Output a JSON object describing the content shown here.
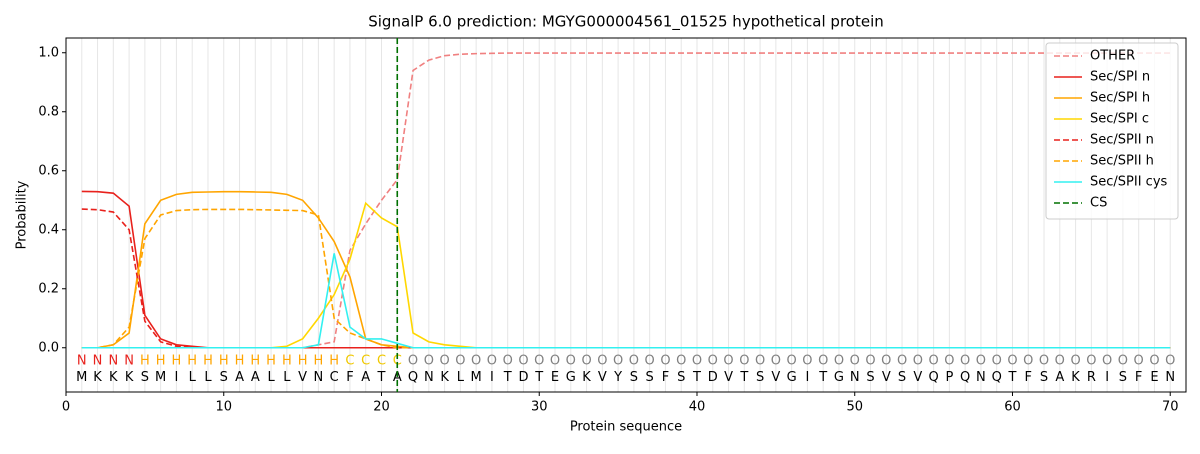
{
  "chart_data": {
    "type": "line",
    "title": "SignalP 6.0 prediction: MGYG000004561_01525 hypothetical protein",
    "x_label": "Protein sequence",
    "y_label": "Probability",
    "x": [
      1,
      2,
      3,
      4,
      5,
      6,
      7,
      8,
      9,
      10,
      11,
      12,
      13,
      14,
      15,
      16,
      17,
      18,
      19,
      20,
      21,
      22,
      23,
      24,
      25,
      26,
      27,
      28,
      29,
      30,
      31,
      32,
      33,
      34,
      35,
      36,
      37,
      38,
      39,
      40,
      41,
      42,
      43,
      44,
      45,
      46,
      47,
      48,
      49,
      50,
      51,
      52,
      53,
      54,
      55,
      56,
      57,
      58,
      59,
      60,
      61,
      62,
      63,
      64,
      65,
      66,
      67,
      68,
      69,
      70
    ],
    "sequence": [
      "M",
      "K",
      "K",
      "K",
      "S",
      "M",
      "I",
      "L",
      "L",
      "S",
      "A",
      "A",
      "L",
      "L",
      "V",
      "N",
      "C",
      "F",
      "A",
      "T",
      "A",
      "Q",
      "N",
      "K",
      "L",
      "M",
      "I",
      "T",
      "D",
      "T",
      "E",
      "G",
      "K",
      "V",
      "Y",
      "S",
      "S",
      "F",
      "S",
      "T",
      "D",
      "V",
      "T",
      "S",
      "V",
      "G",
      "I",
      "T",
      "G",
      "N",
      "S",
      "V",
      "S",
      "V",
      "Q",
      "P",
      "Q",
      "N",
      "Q",
      "T",
      "F",
      "S",
      "A",
      "K",
      "R",
      "I",
      "S",
      "F",
      "E",
      "N"
    ],
    "regions": [
      "N",
      "N",
      "N",
      "N",
      "H",
      "H",
      "H",
      "H",
      "H",
      "H",
      "H",
      "H",
      "H",
      "H",
      "H",
      "H",
      "H",
      "C",
      "C",
      "C",
      "C",
      "O",
      "O",
      "O",
      "O",
      "O",
      "O",
      "O",
      "O",
      "O",
      "O",
      "O",
      "O",
      "O",
      "O",
      "O",
      "O",
      "O",
      "O",
      "O",
      "O",
      "O",
      "O",
      "O",
      "O",
      "O",
      "O",
      "O",
      "O",
      "O",
      "O",
      "O",
      "O",
      "O",
      "O",
      "O",
      "O",
      "O",
      "O",
      "O",
      "O",
      "O",
      "O",
      "O",
      "O",
      "O",
      "O",
      "O",
      "O",
      "O"
    ],
    "region_colors": {
      "N": "#e8211c",
      "H": "#ffa500",
      "C": "#f0c800",
      "O": "#808080"
    },
    "series": [
      {
        "name": "OTHER",
        "color": "#f08080",
        "dash": true,
        "values": [
          0,
          0,
          0,
          0,
          0,
          0,
          0,
          0,
          0,
          0,
          0,
          0,
          0,
          0,
          0,
          0.01,
          0.02,
          0.33,
          0.42,
          0.5,
          0.57,
          0.94,
          0.975,
          0.99,
          0.995,
          0.997,
          0.998,
          0.999,
          0.999,
          0.999,
          0.999,
          0.999,
          0.999,
          0.999,
          0.999,
          0.999,
          0.999,
          0.999,
          0.999,
          0.999,
          0.999,
          0.999,
          0.999,
          0.999,
          0.999,
          0.999,
          0.999,
          0.999,
          0.999,
          0.999,
          0.999,
          0.999,
          0.999,
          0.999,
          0.999,
          0.999,
          0.999,
          0.999,
          0.999,
          0.999,
          0.999,
          0.999,
          0.999,
          0.999,
          0.999,
          0.999,
          0.999,
          0.999,
          0.999,
          0.999
        ]
      },
      {
        "name": "Sec/SPI n",
        "color": "#e8211c",
        "dash": false,
        "values": [
          0.53,
          0.529,
          0.524,
          0.48,
          0.11,
          0.03,
          0.01,
          0.005,
          0,
          0,
          0,
          0,
          0,
          0,
          0,
          0,
          0,
          0,
          0,
          0,
          0,
          0,
          0,
          0,
          0,
          0,
          0,
          0,
          0,
          0,
          0,
          0,
          0,
          0,
          0,
          0,
          0,
          0,
          0,
          0,
          0,
          0,
          0,
          0,
          0,
          0,
          0,
          0,
          0,
          0,
          0,
          0,
          0,
          0,
          0,
          0,
          0,
          0,
          0,
          0,
          0,
          0,
          0,
          0,
          0,
          0,
          0,
          0,
          0,
          0
        ]
      },
      {
        "name": "Sec/SPI h",
        "color": "#ffa500",
        "dash": false,
        "values": [
          0,
          0,
          0.01,
          0.05,
          0.42,
          0.5,
          0.52,
          0.527,
          0.528,
          0.529,
          0.529,
          0.528,
          0.527,
          0.52,
          0.5,
          0.44,
          0.36,
          0.24,
          0.03,
          0.01,
          0.005,
          0,
          0,
          0,
          0,
          0,
          0,
          0,
          0,
          0,
          0,
          0,
          0,
          0,
          0,
          0,
          0,
          0,
          0,
          0,
          0,
          0,
          0,
          0,
          0,
          0,
          0,
          0,
          0,
          0,
          0,
          0,
          0,
          0,
          0,
          0,
          0,
          0,
          0,
          0,
          0,
          0,
          0,
          0,
          0,
          0,
          0,
          0,
          0,
          0
        ]
      },
      {
        "name": "Sec/SPI c",
        "color": "#ffd700",
        "dash": false,
        "values": [
          0,
          0,
          0,
          0,
          0,
          0,
          0,
          0,
          0,
          0,
          0,
          0,
          0,
          0.005,
          0.03,
          0.1,
          0.18,
          0.3,
          0.49,
          0.44,
          0.41,
          0.05,
          0.02,
          0.01,
          0.005,
          0,
          0,
          0,
          0,
          0,
          0,
          0,
          0,
          0,
          0,
          0,
          0,
          0,
          0,
          0,
          0,
          0,
          0,
          0,
          0,
          0,
          0,
          0,
          0,
          0,
          0,
          0,
          0,
          0,
          0,
          0,
          0,
          0,
          0,
          0,
          0,
          0,
          0,
          0,
          0,
          0,
          0,
          0,
          0,
          0
        ]
      },
      {
        "name": "Sec/SPII n",
        "color": "#e8211c",
        "dash": true,
        "values": [
          0.47,
          0.468,
          0.46,
          0.4,
          0.09,
          0.02,
          0.005,
          0,
          0,
          0,
          0,
          0,
          0,
          0,
          0,
          0,
          0,
          0,
          0,
          0,
          0,
          0,
          0,
          0,
          0,
          0,
          0,
          0,
          0,
          0,
          0,
          0,
          0,
          0,
          0,
          0,
          0,
          0,
          0,
          0,
          0,
          0,
          0,
          0,
          0,
          0,
          0,
          0,
          0,
          0,
          0,
          0,
          0,
          0,
          0,
          0,
          0,
          0,
          0,
          0,
          0,
          0,
          0,
          0,
          0,
          0,
          0,
          0,
          0,
          0
        ]
      },
      {
        "name": "Sec/SPII h",
        "color": "#ffa500",
        "dash": true,
        "values": [
          0,
          0,
          0.01,
          0.07,
          0.37,
          0.45,
          0.465,
          0.468,
          0.469,
          0.469,
          0.469,
          0.468,
          0.467,
          0.466,
          0.465,
          0.45,
          0.1,
          0.05,
          0.03,
          0.01,
          0,
          0,
          0,
          0,
          0,
          0,
          0,
          0,
          0,
          0,
          0,
          0,
          0,
          0,
          0,
          0,
          0,
          0,
          0,
          0,
          0,
          0,
          0,
          0,
          0,
          0,
          0,
          0,
          0,
          0,
          0,
          0,
          0,
          0,
          0,
          0,
          0,
          0,
          0,
          0,
          0,
          0,
          0,
          0,
          0,
          0,
          0,
          0,
          0,
          0
        ]
      },
      {
        "name": "Sec/SPII cys",
        "color": "#33f0f0",
        "dash": false,
        "values": [
          0,
          0,
          0,
          0,
          0,
          0,
          0,
          0,
          0,
          0,
          0,
          0,
          0,
          0,
          0,
          0.01,
          0.32,
          0.07,
          0.03,
          0.03,
          0.015,
          0,
          0,
          0,
          0,
          0,
          0,
          0,
          0,
          0,
          0,
          0,
          0,
          0,
          0,
          0,
          0,
          0,
          0,
          0,
          0,
          0,
          0,
          0,
          0,
          0,
          0,
          0,
          0,
          0,
          0,
          0,
          0,
          0,
          0,
          0,
          0,
          0,
          0,
          0,
          0,
          0,
          0,
          0,
          0,
          0,
          0,
          0,
          0,
          0
        ]
      }
    ],
    "cs": {
      "name": "CS",
      "color": "#007000",
      "x": 21
    },
    "xlim": [
      0,
      71
    ],
    "ylim": [
      -0.15,
      1.05
    ],
    "xticks": [
      0,
      10,
      20,
      30,
      40,
      50,
      60,
      70
    ],
    "yticks": [
      {
        "value": 0,
        "label": "0.0"
      },
      {
        "value": 0.2,
        "label": "0.2"
      },
      {
        "value": 0.4,
        "label": "0.4"
      },
      {
        "value": 0.6,
        "label": "0.6"
      },
      {
        "value": 0.8,
        "label": "0.8"
      },
      {
        "value": 1,
        "label": "1.0"
      }
    ],
    "xgrid": true,
    "legend": "upper right"
  }
}
